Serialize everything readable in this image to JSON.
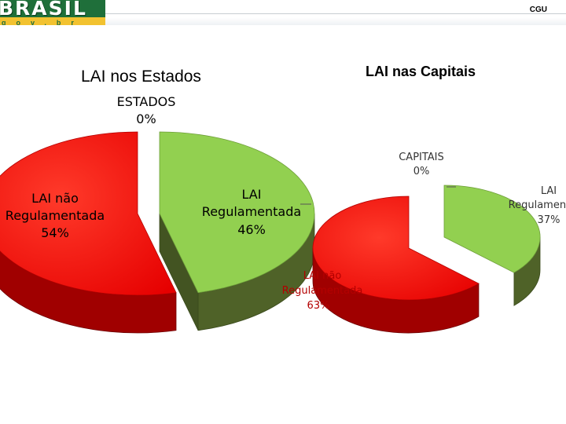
{
  "header": {
    "logo_word": "BRASIL",
    "logo_sub": "gov.br",
    "org": "CGU",
    "brand_green": "#1f6f3a",
    "brand_yellow": "#f2c230"
  },
  "chart_data": [
    {
      "type": "pie",
      "title": "LAI nos Estados",
      "slices": [
        {
          "label": "ESTADOS",
          "value": 0,
          "pct": "0%",
          "color": "#ffffff"
        },
        {
          "label": "LAI Regulamentada",
          "value": 46,
          "pct": "46%",
          "color": "#92d050"
        },
        {
          "label": "LAI não Regulamentada",
          "value": 54,
          "pct": "54%",
          "color": "#ff0000"
        }
      ]
    },
    {
      "type": "pie",
      "title": "LAI nas Capitais",
      "slices": [
        {
          "label": "CAPITAIS",
          "value": 0,
          "pct": "0%",
          "color": "#ffffff"
        },
        {
          "label": "LAI Regulamentada",
          "value": 37,
          "pct": "37%",
          "color": "#92d050"
        },
        {
          "label": "LAI não Regulamentada",
          "value": 63,
          "pct": "63%",
          "color": "#ff0000"
        }
      ]
    }
  ]
}
